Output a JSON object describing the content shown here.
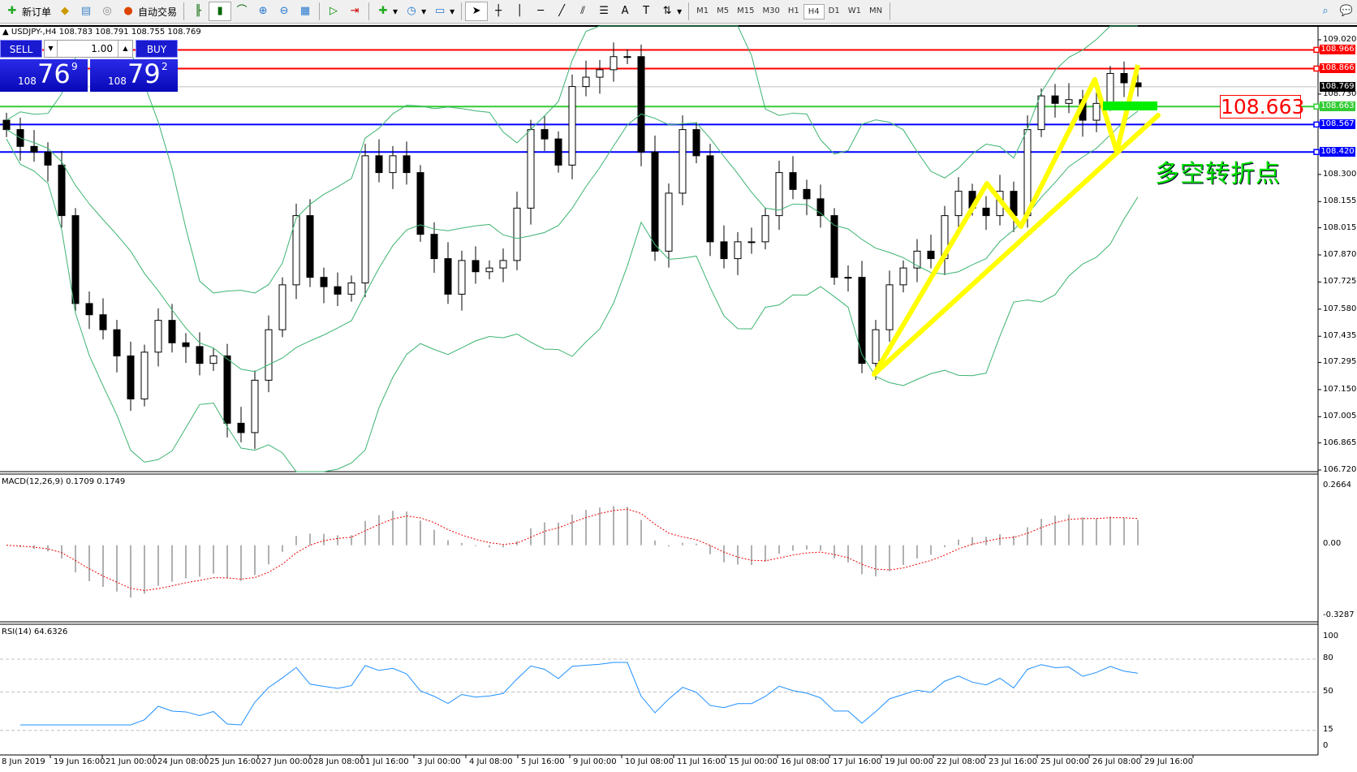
{
  "toolbar": {
    "new_order": "新订单",
    "auto_trading": "自动交易",
    "timeframes": [
      "M1",
      "M5",
      "M15",
      "M30",
      "H1",
      "H4",
      "D1",
      "W1",
      "MN"
    ],
    "active_timeframe": "H4"
  },
  "chart": {
    "info": "USDJPY-,H4  108.783 108.791 108.755 108.769",
    "symbol": "USDJPY-",
    "timeframe": "H4"
  },
  "trade_panel": {
    "sell_label": "SELL",
    "buy_label": "BUY",
    "lot": "1.00",
    "sell_prefix": "108",
    "sell_big": "76",
    "sell_pip": "9",
    "buy_prefix": "108",
    "buy_big": "79",
    "buy_pip": "2"
  },
  "price_axis": [
    "109.020",
    "108.730",
    "108.300",
    "108.155",
    "108.015",
    "107.870",
    "107.725",
    "107.580",
    "107.435",
    "107.295",
    "107.150",
    "107.005",
    "106.865",
    "106.720"
  ],
  "levels": [
    {
      "price": "108.966",
      "color": "#ff0000"
    },
    {
      "price": "108.866",
      "color": "#ff0000"
    },
    {
      "price": "108.769",
      "color": "#000000",
      "bid": true
    },
    {
      "price": "108.663",
      "color": "#33cc33"
    },
    {
      "price": "108.567",
      "color": "#0000ff"
    },
    {
      "price": "108.420",
      "color": "#0000ff"
    }
  ],
  "annotation": {
    "price_label": "108.663",
    "text": "多空转折点",
    "line_color": "#ffff00"
  },
  "candles_close": [
    108.54,
    108.45,
    108.42,
    108.35,
    108.08,
    107.61,
    107.55,
    107.47,
    107.33,
    107.1,
    107.35,
    107.52,
    107.4,
    107.38,
    107.29,
    107.33,
    106.97,
    106.92,
    107.2,
    107.47,
    107.71,
    108.08,
    107.75,
    107.7,
    107.66,
    107.72,
    108.4,
    108.31,
    108.4,
    108.31,
    107.98,
    107.85,
    107.66,
    107.84,
    107.78,
    107.8,
    107.84,
    108.12,
    108.54,
    108.49,
    108.35,
    108.77,
    108.82,
    108.86,
    108.93,
    108.93,
    108.42,
    107.89,
    108.2,
    108.54,
    108.4,
    107.94,
    107.85,
    107.94,
    107.94,
    108.08,
    108.31,
    108.22,
    108.17,
    108.08,
    107.75,
    107.75,
    107.29,
    107.47,
    107.71,
    107.8,
    107.89,
    107.85,
    108.08,
    108.21,
    108.12,
    108.08,
    108.21,
    108.08,
    108.54,
    108.72,
    108.68,
    108.7,
    108.59,
    108.68,
    108.84,
    108.79,
    108.769
  ],
  "macd": {
    "label": "MACD(12,26,9) 0.1709 0.1749",
    "axis": [
      "0.2664",
      "0.00",
      "-0.3287"
    ]
  },
  "rsi": {
    "label": "RSI(14) 64.6326",
    "axis": [
      "100",
      "80",
      "50",
      "15",
      "0"
    ]
  },
  "time_axis": [
    "8 Jun 2019",
    "19 Jun 16:00",
    "21 Jun 00:00",
    "24 Jun 08:00",
    "25 Jun 16:00",
    "27 Jun 00:00",
    "28 Jun 08:00",
    "1 Jul 16:00",
    "3 Jul 00:00",
    "4 Jul 08:00",
    "5 Jul 16:00",
    "9 Jul 00:00",
    "10 Jul 08:00",
    "11 Jul 16:00",
    "15 Jul 00:00",
    "16 Jul 08:00",
    "17 Jul 16:00",
    "19 Jul 00:00",
    "22 Jul 08:00",
    "23 Jul 16:00",
    "25 Jul 00:00",
    "26 Jul 08:00",
    "29 Jul 16:00"
  ]
}
